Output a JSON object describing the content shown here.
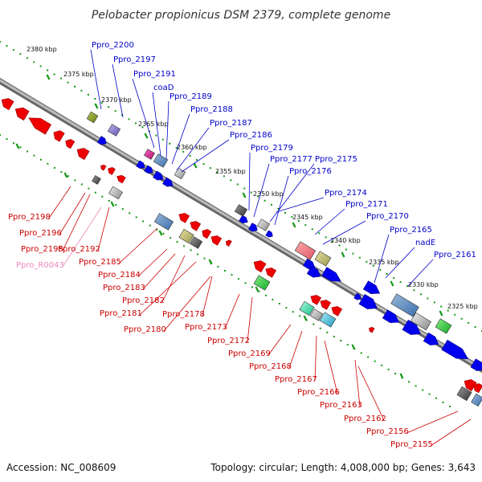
{
  "title": "Pelobacter propionicus DSM 2379, complete genome",
  "footer": {
    "accession": "Accession: NC_008609",
    "topology": "Topology: circular; Length: 4,008,000 bp; Genes: 3,643"
  },
  "colors": {
    "forward_label": "#0000cc",
    "reverse_label": "#cc0000",
    "rna_label": "#ee88bb",
    "tick_dots": "#119911",
    "backbone": "#888888"
  },
  "ticks": [
    "2380 kbp",
    "2375 kbp",
    "2370 kbp",
    "2365 kbp",
    "2360 kbp",
    "2355 kbp",
    "2350 kbp",
    "2345 kbp",
    "2340 kbp",
    "2335 kbp",
    "2330 kbp",
    "2325 kbp"
  ],
  "forward_genes": [
    "Ppro_2200",
    "Ppro_2197",
    "Ppro_2191",
    "coaD",
    "Ppro_2189",
    "Ppro_2188",
    "Ppro_2187",
    "Ppro_2186",
    "Ppro_2179",
    "Ppro_2177",
    "Ppro_2175",
    "Ppro_2176",
    "Ppro_2174",
    "Ppro_2171",
    "Ppro_2170",
    "Ppro_2165",
    "nadE",
    "Ppro_2161"
  ],
  "reverse_genes": [
    "Ppro_2198",
    "Ppro_2196",
    "Ppro_2195",
    "Ppro_R0043",
    "Ppro_2192",
    "Ppro_2185",
    "Ppro_2184",
    "Ppro_2183",
    "Ppro_2182",
    "Ppro_2181",
    "Ppro_2180",
    "Ppro_2178",
    "Ppro_2173",
    "Ppro_2172",
    "Ppro_2169",
    "Ppro_2168",
    "Ppro_2167",
    "Ppro_2166",
    "Ppro_2163",
    "Ppro_2162",
    "Ppro_2156",
    "Ppro_2155"
  ]
}
